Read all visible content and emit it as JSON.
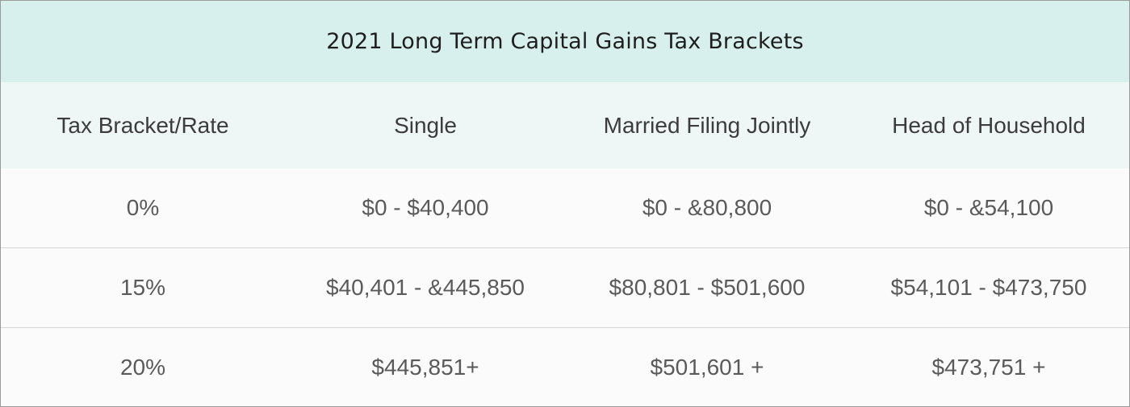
{
  "table": {
    "title": "2021 Long Term Capital Gains Tax Brackets",
    "headers": [
      "Tax Bracket/Rate",
      "Single",
      "Married Filing Jointly",
      "Head of Household"
    ],
    "rows": [
      [
        "0%",
        "$0 - $40,400",
        "$0 - &80,800",
        "$0 - &54,100"
      ],
      [
        "15%",
        "$40,401 - &445,850",
        "$80,801 - $501,600",
        "$54,101 - $473,750"
      ],
      [
        "20%",
        "$445,851+",
        "$501,601 +",
        "$473,751 +"
      ]
    ]
  },
  "colors": {
    "title_background": "#d8f0ed",
    "header_background": "#eef7f6",
    "row_background": "#fbfbfb",
    "row_divider": "#d6d6d6"
  }
}
